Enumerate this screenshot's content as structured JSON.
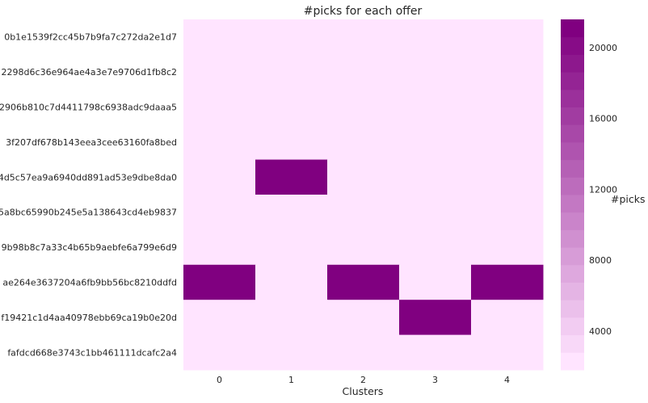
{
  "chart_data": {
    "type": "heatmap",
    "title": "#picks for each offer",
    "xlabel": "Clusters",
    "ylabel": "",
    "x_categories": [
      "0",
      "1",
      "2",
      "3",
      "4"
    ],
    "y_categories": [
      "0b1e1539f2cc45b7b9fa7c272da2e1d7",
      "2298d6c36e964ae4a3e7e9706d1fb8c2",
      "2906b810c7d4411798c6938adc9daaa5",
      "3f207df678b143eea3cee63160fa8bed",
      "4d5c57ea9a6940dd891ad53e9dbe8da0",
      "5a8bc65990b245e5a138643cd4eb9837",
      "9b98b8c7a33c4b65b9aebfe6a799e6d9",
      "ae264e3637204a6fb9bb56bc8210ddfd",
      "f19421c1d4aa40978ebb69ca19b0e20d",
      "fafdcd668e3743c1bb461111dcafc2a4"
    ],
    "values": [
      [
        2100,
        2100,
        2100,
        2100,
        2100
      ],
      [
        2100,
        2100,
        2100,
        2100,
        2100
      ],
      [
        2100,
        2100,
        2100,
        2100,
        2100
      ],
      [
        2100,
        2100,
        2100,
        2100,
        2100
      ],
      [
        2100,
        21300,
        2100,
        2100,
        2100
      ],
      [
        2100,
        2100,
        2100,
        2100,
        2100
      ],
      [
        2100,
        2100,
        2100,
        2100,
        2100
      ],
      [
        21300,
        2100,
        21300,
        2100,
        21300
      ],
      [
        2100,
        2100,
        2100,
        21300,
        2100
      ],
      [
        2100,
        2100,
        2100,
        2100,
        2100
      ]
    ],
    "colorbar": {
      "label": "#picks",
      "ticks": [
        4000,
        8000,
        12000,
        16000,
        20000
      ],
      "tick_labels": [
        "4000",
        "8000",
        "12000",
        "16000",
        "20000"
      ],
      "range": [
        1800,
        21600
      ],
      "steps": 20,
      "color_low": "#ffe4ff",
      "color_high": "#800080"
    },
    "grid": false
  }
}
